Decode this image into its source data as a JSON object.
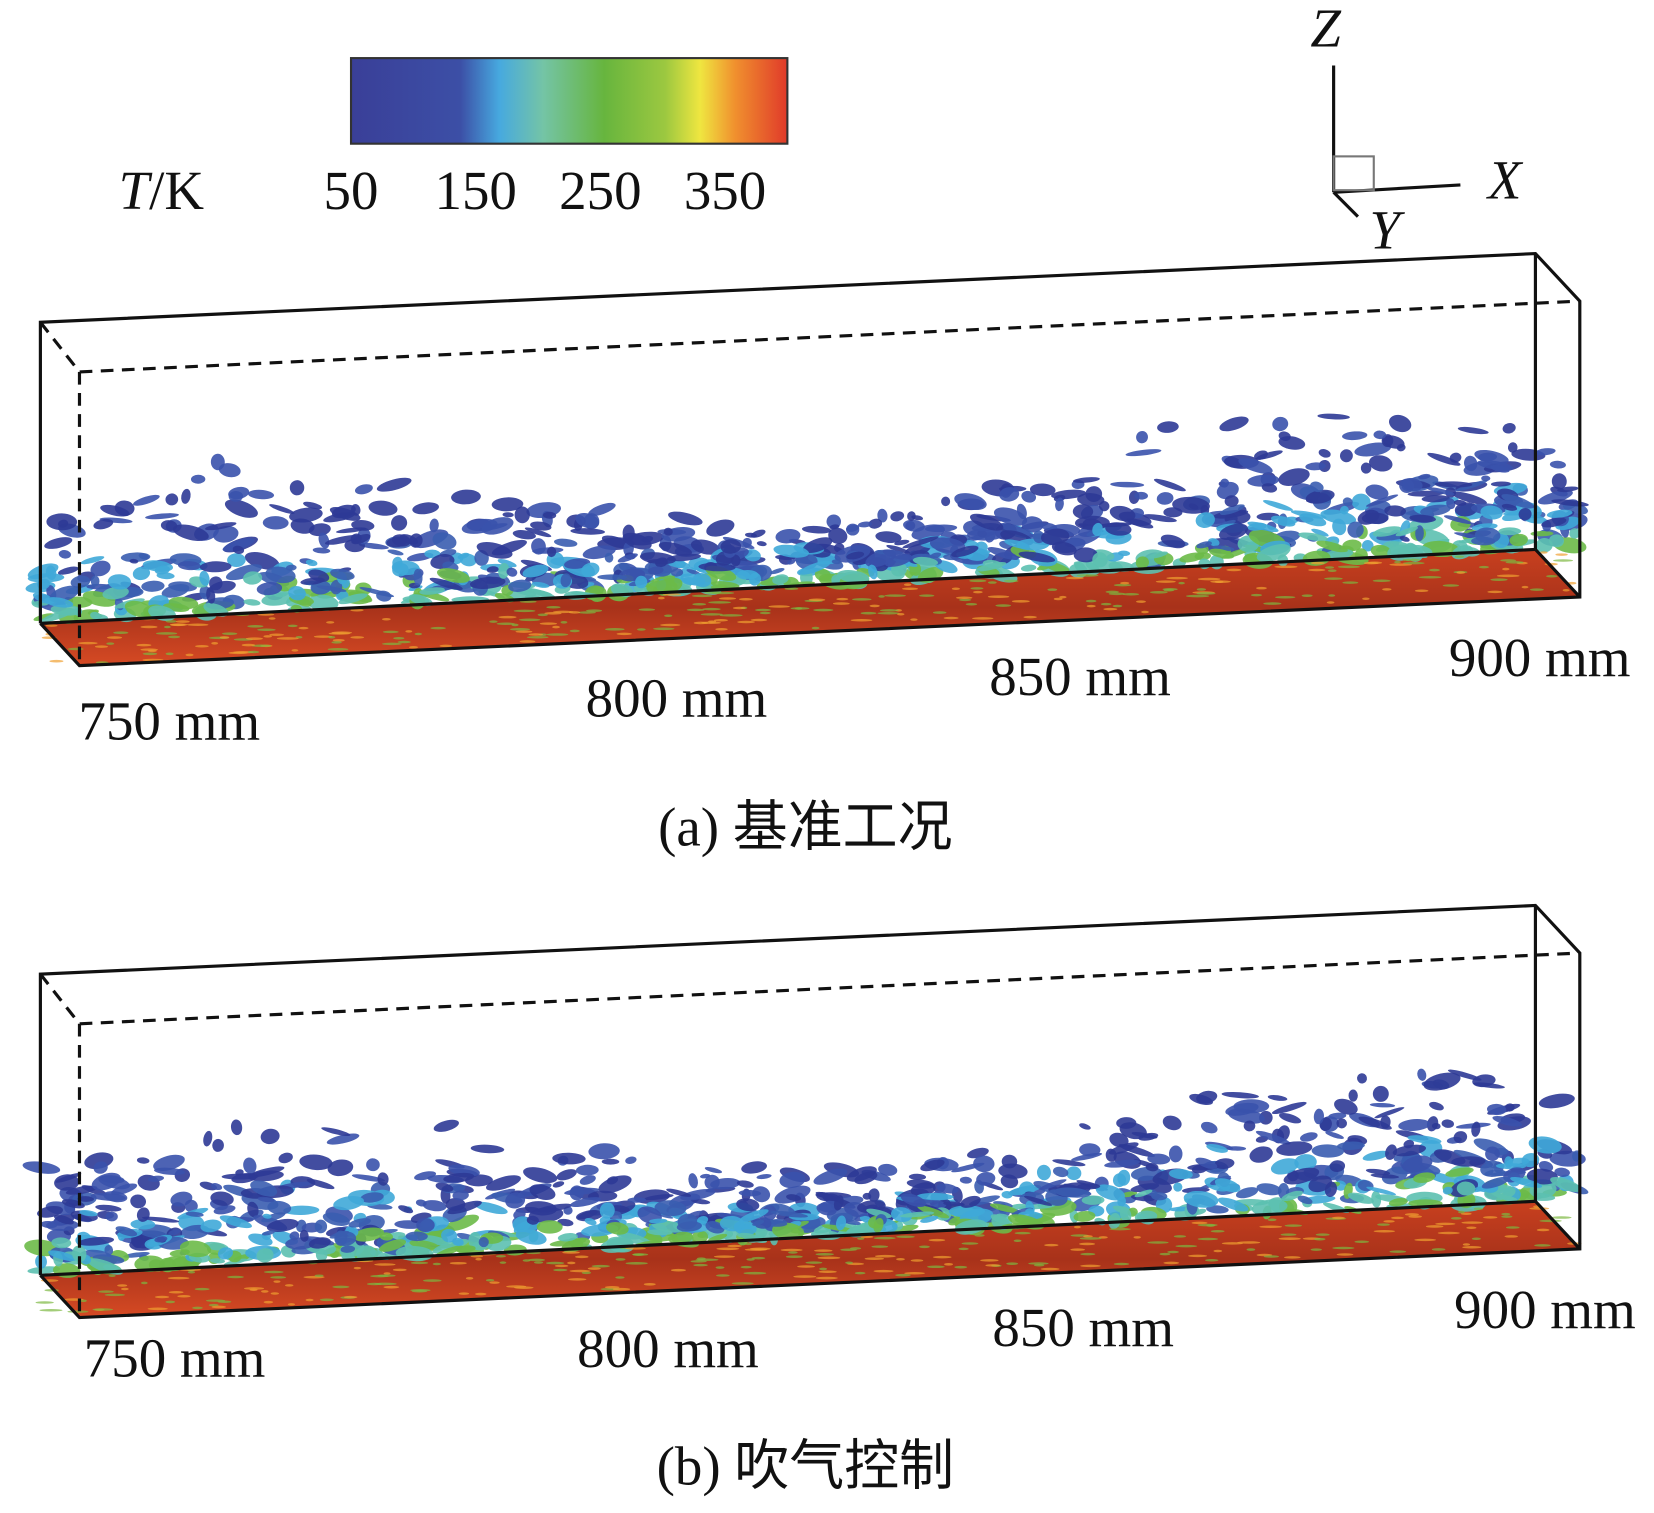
{
  "colorbar": {
    "variable": "T",
    "unit": "/K",
    "range": [
      50,
      400
    ],
    "ticks": [
      50,
      150,
      250,
      350
    ]
  },
  "axes": {
    "z": "Z",
    "x": "X",
    "y": "Y"
  },
  "panels": [
    {
      "positions": [
        "750 mm",
        "800 mm",
        "850 mm",
        "900 mm"
      ],
      "caption": "(a) 基准工况"
    },
    {
      "positions": [
        "750 mm",
        "800 mm",
        "850 mm",
        "900 mm"
      ],
      "caption": "(b) 吹气控制"
    }
  ]
}
